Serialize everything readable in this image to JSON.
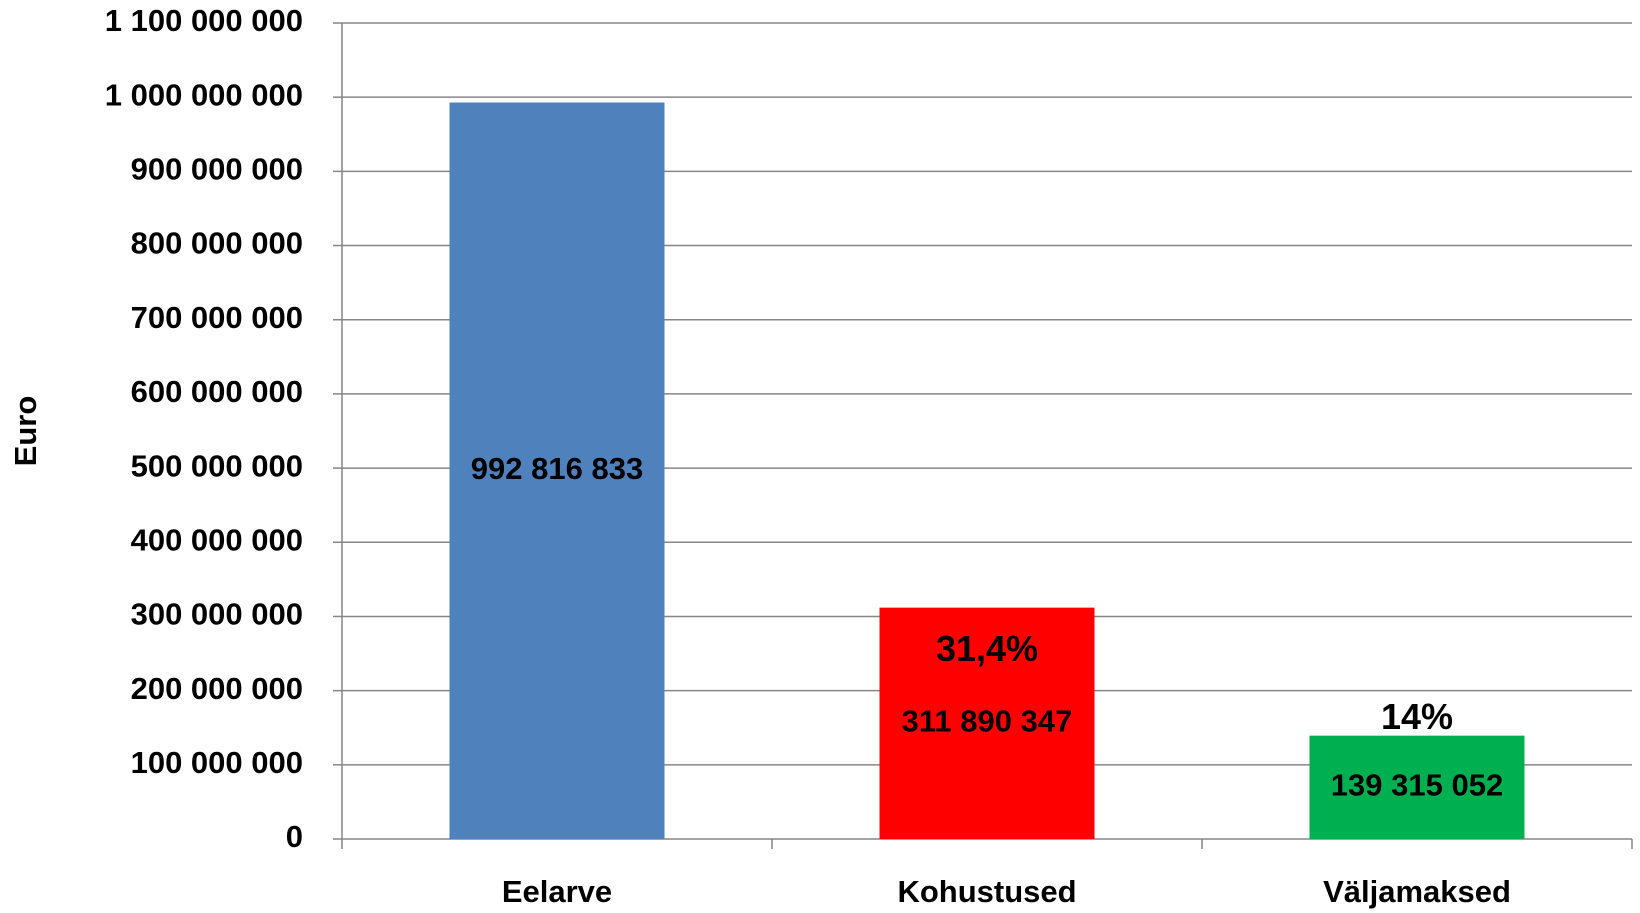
{
  "chart_data": {
    "type": "bar",
    "y_label": "Euro",
    "categories": [
      "Eelarve",
      "Kohustused",
      "Väljamaksed"
    ],
    "values": [
      992816833,
      311890347,
      139315052
    ],
    "value_labels": [
      "992 816 833",
      "311 890 347",
      "139 315 052"
    ],
    "colors": [
      "#4f81bd",
      "#ff0000",
      "#00b050"
    ],
    "annotations": [
      {
        "text": "31,4%",
        "x": "Kohustused"
      },
      {
        "text": "14%",
        "x": "Väljamaksed"
      }
    ],
    "ylim": [
      0,
      1100000000
    ],
    "yticks": [
      0,
      {
        "value": 100000000,
        "label": "100 000 000"
      },
      {
        "value": 200000000,
        "label": "200 000 000"
      },
      {
        "value": 300000000,
        "label": "300 000 000"
      },
      {
        "value": 400000000,
        "label": "400 000 000"
      },
      {
        "value": 500000000,
        "label": "500 000 000"
      },
      {
        "value": 600000000,
        "label": "600 000 000"
      },
      {
        "value": 700000000,
        "label": "700 000 000"
      },
      {
        "value": 800000000,
        "label": "800 000 000"
      },
      {
        "value": 900000000,
        "label": "900 000 000"
      },
      {
        "value": 1000000000,
        "label": "1 000 000 000"
      },
      {
        "value": 1100000000,
        "label": "1 100 000 000"
      }
    ],
    "grid": true
  }
}
